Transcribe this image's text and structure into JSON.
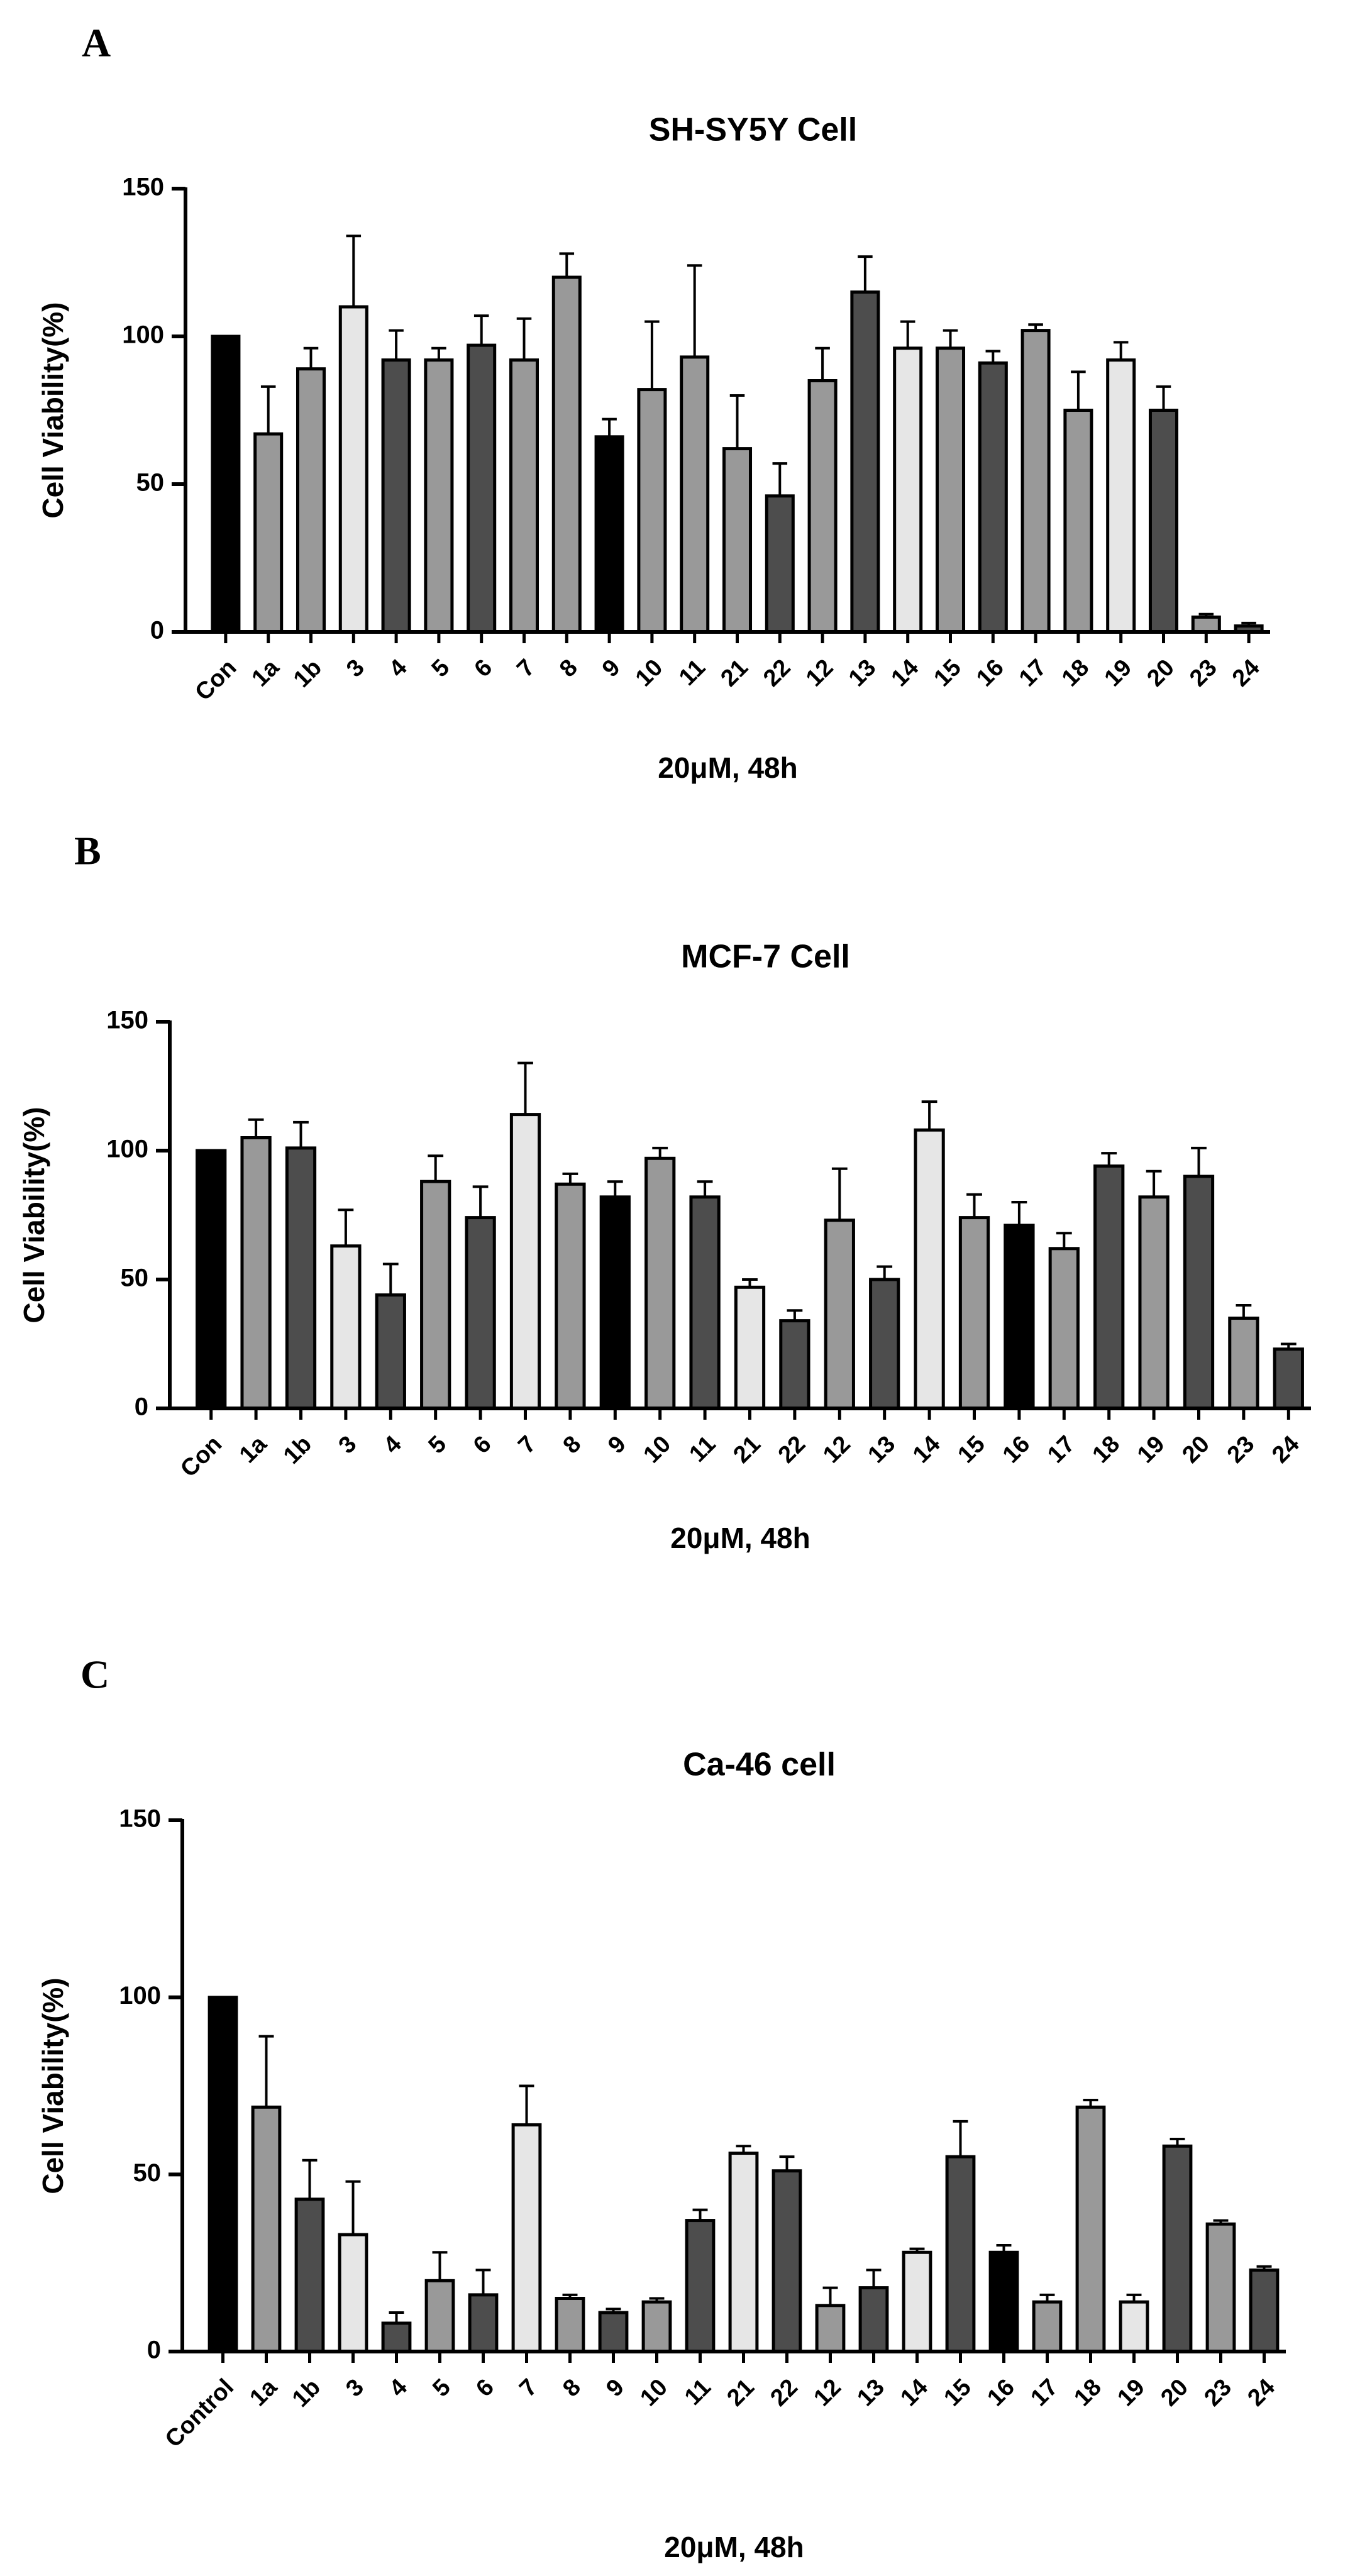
{
  "colors": {
    "black": "#000000",
    "dark": "#4d4d4d",
    "mid": "#999999",
    "light": "#e6e6e6",
    "axis": "#000000"
  },
  "chart_data": [
    {
      "panel_label": "A",
      "type": "bar",
      "title": "SH-SY5Y Cell",
      "xlabel": "20μM, 48h",
      "ylabel": "Cell Viability(%)",
      "ylim": [
        0,
        150
      ],
      "yticks": [
        0,
        50,
        100,
        150
      ],
      "grid": false,
      "categories": [
        "Con",
        "1a",
        "1b",
        "3",
        "4",
        "5",
        "6",
        "7",
        "8",
        "9",
        "10",
        "11",
        "21",
        "22",
        "12",
        "13",
        "14",
        "15",
        "16",
        "17",
        "18",
        "19",
        "20",
        "23",
        "24"
      ],
      "values": [
        100,
        67,
        89,
        110,
        92,
        92,
        97,
        92,
        120,
        66,
        82,
        93,
        62,
        46,
        85,
        115,
        96,
        96,
        91,
        102,
        75,
        92,
        75,
        5,
        2
      ],
      "errors": [
        0,
        16,
        7,
        24,
        10,
        4,
        10,
        14,
        8,
        6,
        23,
        31,
        18,
        11,
        11,
        12,
        9,
        6,
        4,
        2,
        13,
        6,
        8,
        1,
        1
      ],
      "fills": [
        "black",
        "mid",
        "mid",
        "light",
        "dark",
        "mid",
        "dark",
        "mid",
        "mid",
        "black",
        "mid",
        "mid",
        "mid",
        "dark",
        "mid",
        "dark",
        "light",
        "mid",
        "dark",
        "mid",
        "mid",
        "light",
        "dark",
        "mid",
        "dark"
      ]
    },
    {
      "panel_label": "B",
      "type": "bar",
      "title": "MCF-7 Cell",
      "xlabel": "20μM, 48h",
      "ylabel": "Cell Viability(%)",
      "ylim": [
        0,
        150
      ],
      "yticks": [
        0,
        50,
        100,
        150
      ],
      "grid": false,
      "categories": [
        "Con",
        "1a",
        "1b",
        "3",
        "4",
        "5",
        "6",
        "7",
        "8",
        "9",
        "10",
        "11",
        "21",
        "22",
        "12",
        "13",
        "14",
        "15",
        "16",
        "17",
        "18",
        "19",
        "20",
        "23",
        "24"
      ],
      "values": [
        100,
        105,
        101,
        63,
        44,
        88,
        74,
        114,
        87,
        82,
        97,
        82,
        47,
        34,
        73,
        50,
        108,
        74,
        71,
        62,
        94,
        82,
        90,
        35,
        23
      ],
      "errors": [
        0,
        7,
        10,
        14,
        12,
        10,
        12,
        20,
        4,
        6,
        4,
        6,
        3,
        4,
        20,
        5,
        11,
        9,
        9,
        6,
        5,
        10,
        11,
        5,
        2
      ],
      "fills": [
        "black",
        "mid",
        "dark",
        "light",
        "dark",
        "mid",
        "dark",
        "light",
        "mid",
        "black",
        "mid",
        "dark",
        "light",
        "dark",
        "mid",
        "dark",
        "light",
        "mid",
        "black",
        "mid",
        "dark",
        "mid",
        "dark",
        "mid",
        "dark"
      ]
    },
    {
      "panel_label": "C",
      "type": "bar",
      "title": "Ca-46 cell",
      "xlabel": "20μM, 48h",
      "ylabel": "Cell Viability(%)",
      "ylim": [
        0,
        150
      ],
      "yticks": [
        0,
        50,
        100,
        150
      ],
      "grid": false,
      "categories": [
        "Control",
        "1a",
        "1b",
        "3",
        "4",
        "5",
        "6",
        "7",
        "8",
        "9",
        "10",
        "11",
        "21",
        "22",
        "12",
        "13",
        "14",
        "15",
        "16",
        "17",
        "18",
        "19",
        "20",
        "23",
        "24"
      ],
      "values": [
        100,
        69,
        43,
        33,
        8,
        20,
        16,
        64,
        15,
        11,
        14,
        37,
        56,
        51,
        13,
        18,
        28,
        55,
        28,
        14,
        69,
        14,
        58,
        36,
        23
      ],
      "errors": [
        0,
        20,
        11,
        15,
        3,
        8,
        7,
        11,
        1,
        1,
        1,
        3,
        2,
        4,
        5,
        5,
        1,
        10,
        2,
        2,
        2,
        2,
        2,
        1,
        1
      ],
      "fills": [
        "black",
        "mid",
        "dark",
        "light",
        "dark",
        "mid",
        "dark",
        "light",
        "mid",
        "dark",
        "mid",
        "dark",
        "light",
        "dark",
        "mid",
        "dark",
        "light",
        "dark",
        "black",
        "mid",
        "mid",
        "light",
        "dark",
        "mid",
        "dark"
      ]
    }
  ]
}
